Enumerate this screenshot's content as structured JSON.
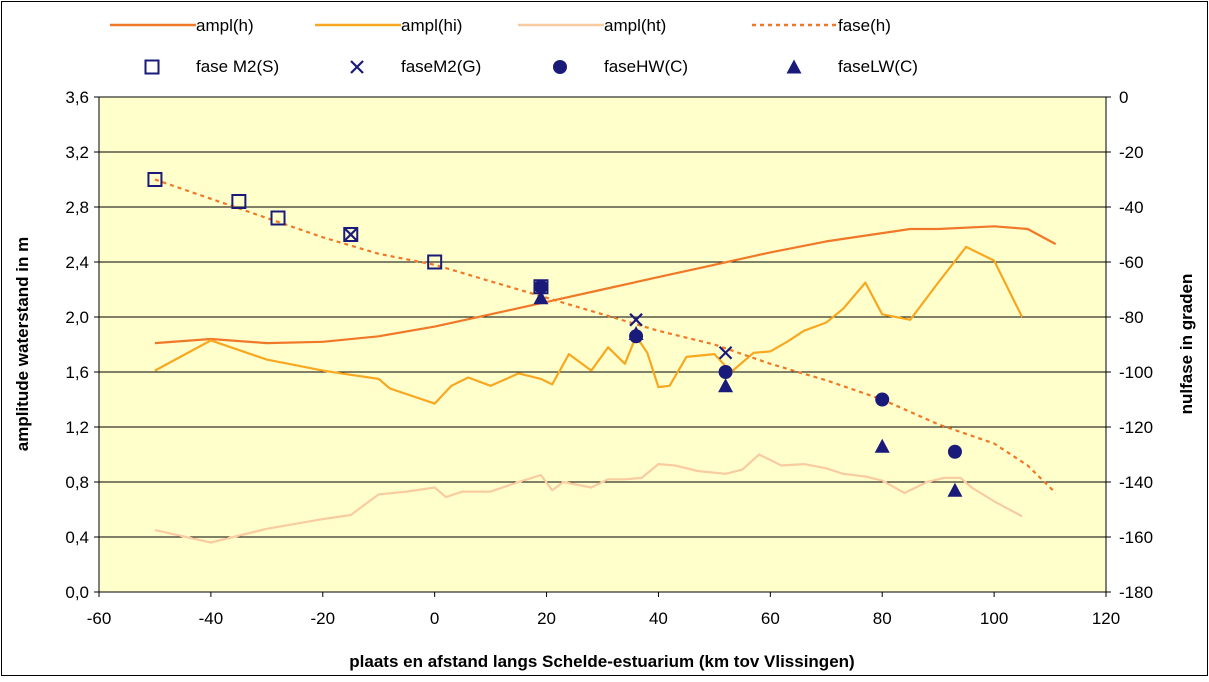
{
  "chart_data": {
    "type": "line",
    "xlabel": "plaats en afstand langs Schelde-estuarium (km tov Vlissingen)",
    "ylabel": "amplitude waterstand in m",
    "y2label": "nulfase in graden",
    "xlim": [
      -60,
      120
    ],
    "ylim": [
      0,
      3.6
    ],
    "y2lim": [
      -180,
      0
    ],
    "x_ticks": [
      "-60",
      "-40",
      "-20",
      "0",
      "20",
      "40",
      "60",
      "80",
      "100",
      "120"
    ],
    "y_ticks": [
      "0,0",
      "0,4",
      "0,8",
      "1,2",
      "1,6",
      "2,0",
      "2,4",
      "2,8",
      "3,2",
      "3,6"
    ],
    "y2_ticks": [
      "-180",
      "-160",
      "-140",
      "-120",
      "-100",
      "-80",
      "-60",
      "-40",
      "-20",
      "0"
    ],
    "grid": "horizontal",
    "legend_position": "top",
    "plot_background": "#FFFFCC",
    "series": [
      {
        "name": "ampl(h)",
        "kind": "line",
        "axis": "left",
        "color": "#F07828",
        "x": [
          -50,
          -40,
          -30,
          -20,
          -10,
          0,
          10,
          20,
          30,
          40,
          50,
          60,
          70,
          80,
          85,
          90,
          100,
          106,
          111
        ],
        "y": [
          1.81,
          1.84,
          1.81,
          1.82,
          1.86,
          1.93,
          2.02,
          2.11,
          2.2,
          2.29,
          2.38,
          2.47,
          2.55,
          2.61,
          2.64,
          2.64,
          2.66,
          2.64,
          2.53
        ]
      },
      {
        "name": "ampl(hi)",
        "kind": "line",
        "axis": "left",
        "color": "#F8A820",
        "x": [
          -50,
          -40,
          -30,
          -25,
          -20,
          -15,
          -10,
          -8,
          0,
          3,
          6,
          10,
          15,
          19,
          21,
          24,
          28,
          31,
          34,
          36,
          38,
          40,
          42,
          45,
          50,
          53,
          57,
          60,
          63,
          66,
          70,
          73,
          77,
          80,
          85,
          90,
          95,
          100,
          105
        ],
        "y": [
          1.61,
          1.83,
          1.69,
          1.65,
          1.61,
          1.58,
          1.55,
          1.48,
          1.37,
          1.5,
          1.56,
          1.5,
          1.59,
          1.55,
          1.51,
          1.73,
          1.61,
          1.78,
          1.66,
          1.86,
          1.74,
          1.49,
          1.5,
          1.71,
          1.73,
          1.6,
          1.74,
          1.75,
          1.82,
          1.9,
          1.96,
          2.06,
          2.25,
          2.02,
          1.98,
          2.25,
          2.51,
          2.41,
          2.0
        ]
      },
      {
        "name": "ampl(ht)",
        "kind": "line",
        "axis": "left",
        "color": "#F8CCA0",
        "x": [
          -50,
          -40,
          -30,
          -20,
          -15,
          -10,
          -5,
          0,
          2,
          5,
          10,
          15,
          19,
          21,
          23,
          28,
          31,
          34,
          37,
          40,
          43,
          47,
          52,
          55,
          58,
          62,
          66,
          70,
          73,
          77,
          80,
          84,
          88,
          91,
          94,
          96,
          100,
          105
        ],
        "y": [
          0.45,
          0.36,
          0.46,
          0.53,
          0.56,
          0.71,
          0.73,
          0.76,
          0.69,
          0.73,
          0.73,
          0.8,
          0.85,
          0.74,
          0.8,
          0.76,
          0.82,
          0.82,
          0.83,
          0.93,
          0.92,
          0.88,
          0.86,
          0.89,
          1.0,
          0.92,
          0.93,
          0.9,
          0.86,
          0.84,
          0.81,
          0.72,
          0.8,
          0.83,
          0.83,
          0.76,
          0.66,
          0.55
        ]
      },
      {
        "name": "fase(h)",
        "kind": "line",
        "axis": "right",
        "color": "#F07828",
        "dashed": true,
        "x": [
          -50,
          -40,
          -30,
          -20,
          -10,
          0,
          10,
          20,
          30,
          40,
          50,
          60,
          70,
          80,
          90,
          100,
          106,
          111
        ],
        "y": [
          -30,
          -37,
          -44,
          -51,
          -57,
          -61,
          -67,
          -73,
          -79,
          -85,
          -90,
          -97,
          -103,
          -110,
          -119,
          -126,
          -134,
          -144
        ]
      },
      {
        "name": "fase M2(S)",
        "kind": "marker",
        "marker": "square-open",
        "axis": "right",
        "color": "#1A1A7A",
        "x": [
          -50,
          -35,
          -28,
          -15,
          0,
          19
        ],
        "y": [
          -30,
          -38,
          -44,
          -50,
          -60,
          -69
        ]
      },
      {
        "name": "faseM2(G)",
        "kind": "marker",
        "marker": "x",
        "axis": "right",
        "color": "#1A1A7A",
        "x": [
          -15,
          36,
          52
        ],
        "y": [
          -50,
          -81,
          -93
        ]
      },
      {
        "name": "faseHW(C)",
        "kind": "marker",
        "marker": "circle",
        "axis": "right",
        "color": "#1A1A7A",
        "x": [
          19,
          36,
          52,
          80,
          93
        ],
        "y": [
          -69,
          -87,
          -100,
          -110,
          -129
        ]
      },
      {
        "name": "faseLW(C)",
        "kind": "marker",
        "marker": "triangle",
        "axis": "right",
        "color": "#1A1A7A",
        "x": [
          19,
          36,
          52,
          80,
          93
        ],
        "y": [
          -73,
          -86,
          -105,
          -127,
          -143
        ]
      }
    ]
  }
}
